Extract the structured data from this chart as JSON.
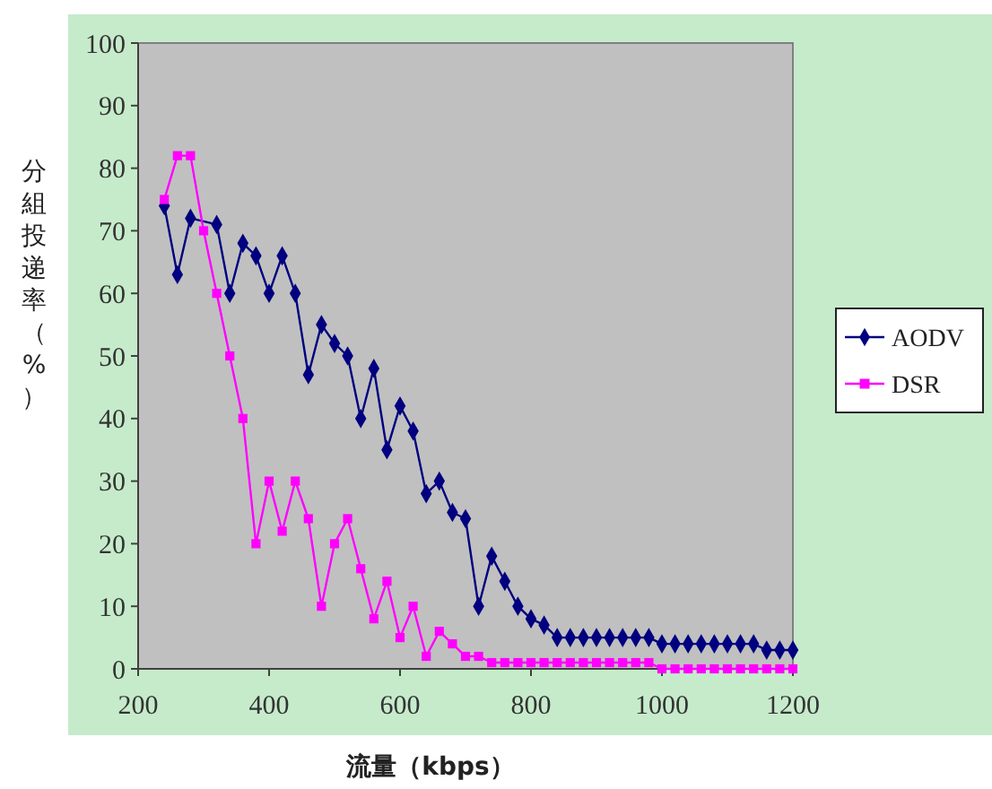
{
  "chart_data": {
    "type": "line",
    "xlabel": "流量（kbps）",
    "ylabel": "分組投递率（%）",
    "xlim": [
      200,
      1200
    ],
    "xticks": [
      200,
      400,
      600,
      800,
      1000,
      1200
    ],
    "ylim": [
      0,
      100
    ],
    "yticks": [
      0,
      10,
      20,
      30,
      40,
      50,
      60,
      70,
      80,
      90,
      100
    ],
    "grid": false,
    "legend": "right",
    "series": [
      {
        "name": "AODV",
        "color": "#000080",
        "marker": "diamond",
        "x": [
          240,
          260,
          280,
          300,
          320,
          340,
          360,
          380,
          400,
          420,
          440,
          460,
          480,
          500,
          520,
          540,
          560,
          580,
          600,
          620,
          640,
          660,
          680,
          700,
          720,
          740,
          760,
          780,
          800,
          820,
          840,
          860,
          880,
          900,
          920,
          940,
          960,
          980,
          1000,
          1020,
          1040,
          1060,
          1080,
          1100,
          1120,
          1140,
          1160,
          1180,
          1200
        ],
        "values": [
          74,
          63,
          72,
          null,
          71,
          60,
          68,
          66,
          60,
          66,
          60,
          47,
          55,
          52,
          50,
          40,
          48,
          35,
          42,
          38,
          28,
          30,
          25,
          24,
          10,
          18,
          14,
          10,
          8,
          7,
          5,
          5,
          5,
          5,
          5,
          5,
          5,
          5,
          4,
          4,
          4,
          4,
          4,
          4,
          4,
          4,
          3,
          3,
          3
        ]
      },
      {
        "name": "DSR",
        "color": "#ff00ff",
        "marker": "square",
        "x": [
          240,
          260,
          280,
          300,
          320,
          340,
          360,
          380,
          400,
          420,
          440,
          460,
          480,
          500,
          520,
          540,
          560,
          580,
          600,
          620,
          640,
          660,
          680,
          700,
          720,
          740,
          760,
          780,
          800,
          820,
          840,
          860,
          880,
          900,
          920,
          940,
          960,
          980,
          1000,
          1020,
          1040,
          1060,
          1080,
          1100,
          1120,
          1140,
          1160,
          1180,
          1200
        ],
        "values": [
          75,
          82,
          82,
          70,
          60,
          50,
          40,
          20,
          30,
          22,
          30,
          24,
          10,
          20,
          24,
          16,
          8,
          14,
          5,
          10,
          2,
          6,
          4,
          2,
          2,
          1,
          1,
          1,
          1,
          1,
          1,
          1,
          1,
          1,
          1,
          1,
          1,
          1,
          0,
          0,
          0,
          0,
          0,
          0,
          0,
          0,
          0,
          0,
          0
        ]
      }
    ]
  }
}
